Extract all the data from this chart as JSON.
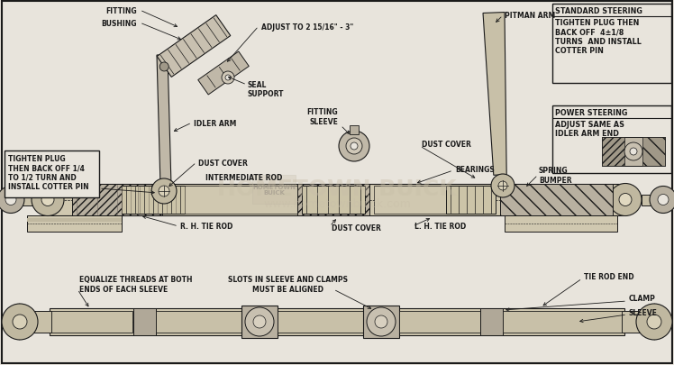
{
  "bg_color": "#e8e4dc",
  "line_color": "#1a1a1a",
  "white": "#f0ece4",
  "figsize": [
    7.48,
    4.06
  ],
  "dpi": 100,
  "labels": {
    "fitting": "FITTING",
    "bushing": "BUSHING",
    "adjust": "ADJUST TO 2 15/16\" - 3\"",
    "seal_support": "SEAL\nSUPPORT",
    "idler_arm": "IDLER ARM",
    "dust_cover_l": "DUST COVER",
    "fitting_sleeve": "FITTING\nSLEEVE",
    "pitman_arm": "PITMAN ARM",
    "dust_cover_r": "DUST COVER",
    "intermediate_rod": "INTERMEDIATE ROD",
    "bearings": "BEARINGS",
    "spring_bumper": "SPRING\nBUMPER",
    "rh_tie_rod": "R. H. TIE ROD",
    "dust_cover_mid": "DUST COVER",
    "lh_tie_rod": "L. H. TIE ROD",
    "tie_rod_end": "TIE ROD END",
    "clamp": "CLAMP",
    "sleeve": "SLEEVE",
    "tighten_l": "TIGHTEN PLUG\nTHEN BACK OFF 1/4\nTO 1/2 TURN AND\nINSTALL COTTER PIN",
    "equalize": "EQUALIZE THREADS AT BOTH\nENDS OF EACH SLEEVE",
    "slots": "SLOTS IN SLEEVE AND CLAMPS\nMUST BE ALIGNED",
    "standard_title": "STANDARD STEERING",
    "standard_body": "TIGHTEN PLUG THEN\nBACK OFF  4±1/8\nTURNS  AND INSTALL\nCOTTER PIN",
    "power_title": "POWER STEERING",
    "power_body": "ADJUST SAME AS\nIDLER ARM END"
  }
}
